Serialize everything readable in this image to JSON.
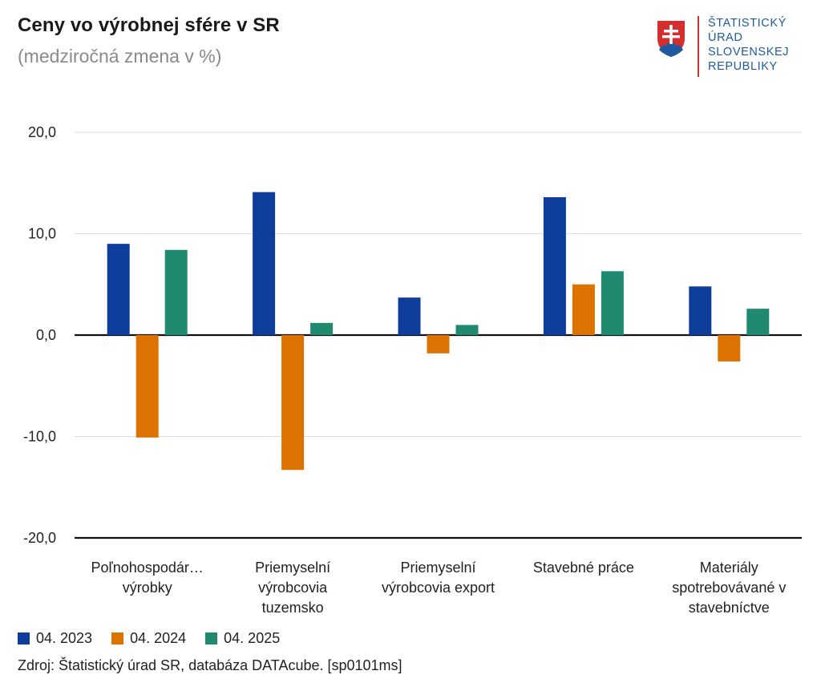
{
  "header": {
    "title": "Ceny vo výrobnej sfére v SR",
    "subtitle": "(medziročná zmena v %)"
  },
  "logo": {
    "lines": [
      "ŠTATISTICKÝ",
      "ÚRAD",
      "SLOVENSKEJ",
      "REPUBLIKY"
    ],
    "colors": {
      "text": "#1f5aa0",
      "divider": "#d42e2e",
      "shield_red": "#d42e2e",
      "shield_blue": "#1f5aa0"
    }
  },
  "chart_data": {
    "type": "bar",
    "title": "Ceny vo výrobnej sfére v SR",
    "subtitle": "(medziročná zmena v %)",
    "xlabel": "",
    "ylabel": "",
    "ylim": [
      -20,
      20
    ],
    "yticks": [
      20,
      10,
      0,
      -10,
      -20
    ],
    "ytick_labels": [
      "20,0",
      "10,0",
      "0,0",
      "-10,0",
      "-20,0"
    ],
    "grid": true,
    "legend_position": "bottom-left",
    "categories": [
      [
        "Poľnohospodár…",
        "výrobky"
      ],
      [
        "Priemyselní",
        "výrobcovia",
        "tuzemsko"
      ],
      [
        "Priemyselní",
        "výrobcovia export"
      ],
      [
        "Stavebné práce"
      ],
      [
        "Materiály",
        "spotrebovávané v",
        "stavebníctve"
      ]
    ],
    "series": [
      {
        "name": "04. 2023",
        "color": "#0e3d9c",
        "values": [
          9.0,
          14.1,
          3.7,
          13.6,
          4.8
        ]
      },
      {
        "name": "04. 2024",
        "color": "#dc7200",
        "values": [
          -10.1,
          -13.3,
          -1.8,
          5.0,
          -2.6
        ]
      },
      {
        "name": "04. 2025",
        "color": "#1f8a70",
        "values": [
          8.4,
          1.2,
          1.0,
          6.3,
          2.6
        ]
      }
    ]
  },
  "footer": {
    "source": "Zdroj: Štatistický úrad SR, databáza DATAcube. [sp0101ms]"
  }
}
